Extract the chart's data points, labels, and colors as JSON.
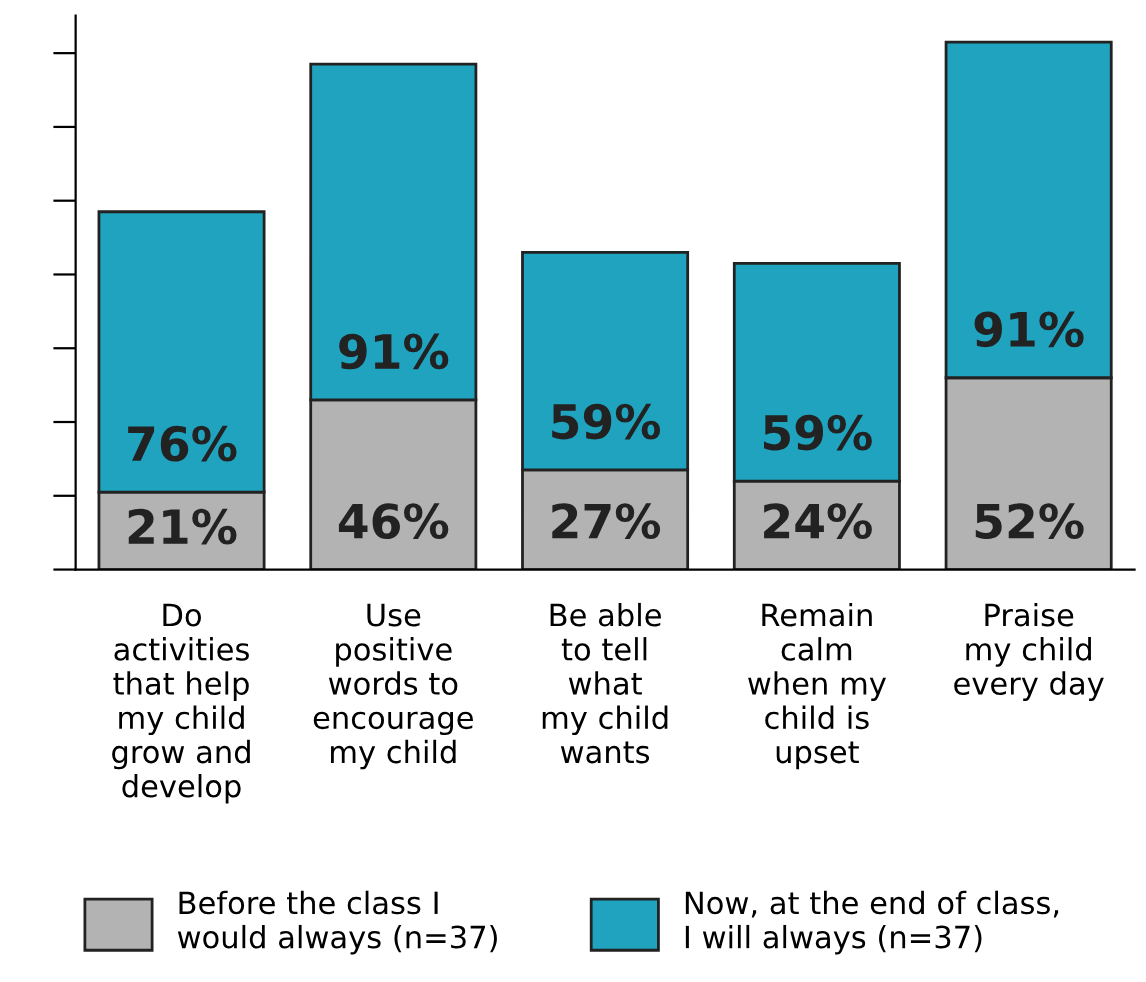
{
  "chart_data": {
    "type": "bar",
    "stacked": true,
    "legend": "bottom",
    "grid": false,
    "categories": [
      "Do\nactivities\nthat help\nmy child\ngrow and\ndevelop",
      "Use\npositive\nwords to\nencourage\nmy child",
      "Be able\nto tell\nwhat\nmy child\nwants",
      "Remain\ncalm\nwhen my\nchild is\nupset",
      "Praise\nmy child\nevery day"
    ],
    "series": [
      {
        "name": "Before the class I\nwould always (n=37)",
        "color": "#b3b3b3",
        "values": [
          21,
          46,
          27,
          24,
          52
        ],
        "value_labels": [
          "21%",
          "46%",
          "27%",
          "24%",
          "52%"
        ]
      },
      {
        "name": "Now, at the end of class,\nI will always (n=37)",
        "color": "#1fa3bf",
        "values": [
          76,
          91,
          59,
          59,
          91
        ],
        "value_labels": [
          "76%",
          "91%",
          "59%",
          "59%",
          "91%"
        ]
      }
    ]
  }
}
